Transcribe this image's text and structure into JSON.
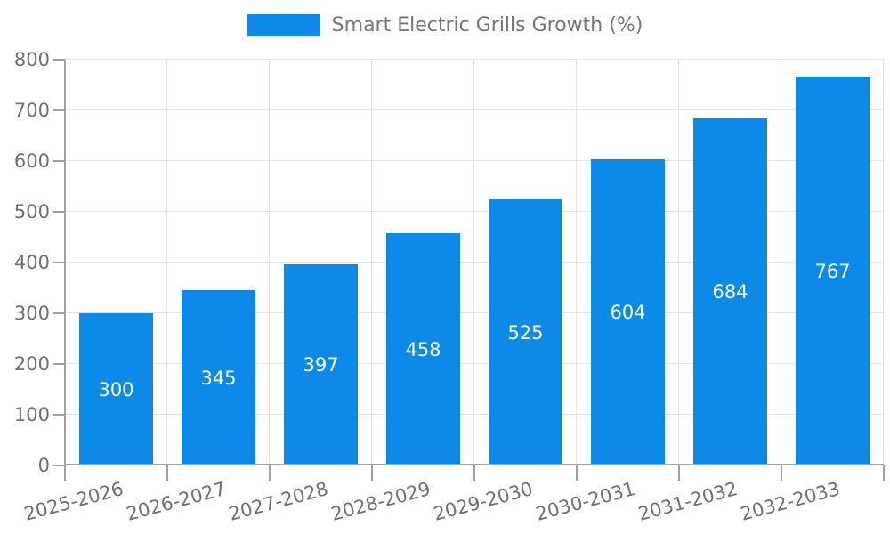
{
  "legend": {
    "label": "Smart Electric Grills Growth (%)"
  },
  "chart_data": {
    "type": "bar",
    "title": "Smart Electric Grills Growth (%)",
    "categories": [
      "2025-2026",
      "2026-2027",
      "2027-2028",
      "2028-2029",
      "2029-2030",
      "2030-2031",
      "2031-2032",
      "2032-2033"
    ],
    "values": [
      300,
      345,
      397,
      458,
      525,
      604,
      684,
      767
    ],
    "series": [
      {
        "name": "Smart Electric Grills Growth (%)",
        "values": [
          300,
          345,
          397,
          458,
          525,
          604,
          684,
          767
        ]
      }
    ],
    "xlabel": "",
    "ylabel": "",
    "ylim": [
      0,
      800
    ],
    "yticks": [
      0,
      100,
      200,
      300,
      400,
      500,
      600,
      700,
      800
    ],
    "grid": true,
    "legend_position": "top-center",
    "value_labels": "inside-center",
    "xlabel_rotation_deg": -15,
    "colors": {
      "bar": "#0d8ae8",
      "value_text": "#ffffff",
      "axis_text": "#707070",
      "legend_text": "#757575",
      "grid": "#e3e3e3",
      "axis_line": "#a0a0a0",
      "background": "#ffffff"
    }
  }
}
